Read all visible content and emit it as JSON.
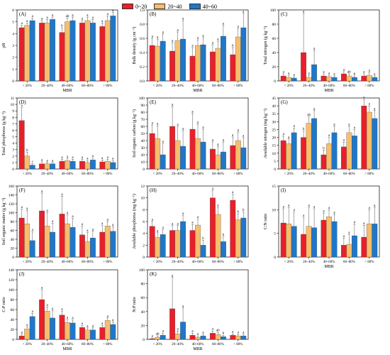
{
  "legend": {
    "items": [
      {
        "label": "0~20",
        "color": "#e8202a"
      },
      {
        "label": "20~40",
        "color": "#f6be6d"
      },
      {
        "label": "40~60",
        "color": "#1f77c9"
      }
    ]
  },
  "chart_data": [
    {
      "type": "bar",
      "panel": "(A)",
      "ylabel": "pH",
      "xlabel": "MBR",
      "categories": [
        "< 20%",
        "20~40%",
        "40~60%",
        "60~80%",
        "> 80%"
      ],
      "ylim": [
        0,
        6
      ],
      "yticks": [
        0,
        1,
        2,
        3,
        4,
        5,
        6
      ],
      "series": [
        {
          "name": "0~20",
          "values": [
            4.5,
            4.9,
            4.1,
            4.9,
            4.6
          ],
          "errors": [
            0.2,
            0.2,
            0.4,
            0.2,
            0.3
          ],
          "letters": [
            "a",
            "a",
            "b",
            "a",
            "a"
          ]
        },
        {
          "name": "20~40",
          "values": [
            4.7,
            4.9,
            5.0,
            5.1,
            5.1
          ],
          "errors": [
            0.2,
            0.3,
            0.3,
            0.3,
            0.4
          ],
          "letters": [
            "a",
            "a",
            "ab",
            "a",
            "a"
          ]
        },
        {
          "name": "40~60",
          "values": [
            5.1,
            5.2,
            5.1,
            4.9,
            5.5
          ],
          "errors": [
            0.2,
            0.2,
            0.3,
            0.3,
            0.3
          ],
          "letters": [
            "a",
            "a",
            "a",
            "a",
            "a"
          ]
        }
      ]
    },
    {
      "type": "bar",
      "panel": "(B)",
      "ylabel": "Bulk density (g cm⁻³)",
      "xlabel": "MBR",
      "categories": [
        "< 20%",
        "20~40%",
        "40~60%",
        "60~80%",
        "> 80%"
      ],
      "ylim": [
        0,
        1.0
      ],
      "yticks": [
        0.0,
        0.2,
        0.4,
        0.6,
        0.8,
        1.0
      ],
      "series": [
        {
          "name": "0~20",
          "values": [
            0.5,
            0.42,
            0.35,
            0.41,
            0.37
          ],
          "errors": [
            0.1,
            0.12,
            0.12,
            0.1,
            0.1
          ],
          "letters": [
            "a",
            "a",
            "a",
            "a",
            "b"
          ]
        },
        {
          "name": "20~40",
          "values": [
            0.49,
            0.57,
            0.5,
            0.46,
            0.62
          ],
          "errors": [
            0.1,
            0.12,
            0.08,
            0.1,
            0.12
          ],
          "letters": [
            "a",
            "a",
            "a",
            "a",
            "a"
          ]
        },
        {
          "name": "40~60",
          "values": [
            0.56,
            0.59,
            0.51,
            0.63,
            0.75
          ],
          "errors": [
            0.1,
            0.26,
            0.1,
            0.15,
            0.2
          ],
          "letters": [
            "a",
            "a",
            "a",
            "a",
            "a"
          ]
        }
      ]
    },
    {
      "type": "bar",
      "panel": "(C)",
      "ylabel": "Total nitrogen (g kg⁻¹)",
      "xlabel": "MBR",
      "categories": [
        "< 20%",
        "20~40%",
        "40~60%",
        "60~80%",
        "> 80%"
      ],
      "ylim": [
        0,
        100
      ],
      "yticks": [
        0,
        20,
        40,
        60,
        80,
        100
      ],
      "series": [
        {
          "name": "0~20",
          "values": [
            7,
            40,
            7,
            10,
            7
          ],
          "errors": [
            3,
            55,
            3,
            3,
            3
          ],
          "letters": [
            "a",
            "a",
            "a",
            "a",
            "a"
          ]
        },
        {
          "name": "20~40",
          "values": [
            5,
            5,
            6,
            7,
            8
          ],
          "errors": [
            3,
            3,
            2,
            3,
            4
          ],
          "letters": [
            "a",
            "a",
            "a",
            "ab",
            "a"
          ]
        },
        {
          "name": "40~60",
          "values": [
            4,
            23,
            5,
            5,
            5
          ],
          "errors": [
            2,
            20,
            2,
            2,
            2
          ],
          "letters": [
            "a",
            "a",
            "a",
            "b",
            "a"
          ]
        }
      ]
    },
    {
      "type": "bar",
      "panel": "(D)",
      "ylabel": "Total phosphorus (g kg⁻¹)",
      "xlabel": "",
      "categories": [
        "< 20%",
        "20~40%",
        "40~60%",
        "60~80%",
        "> 80%"
      ],
      "ylim": [
        0,
        11
      ],
      "yticks": [
        0,
        1,
        2,
        3,
        4,
        5,
        6,
        7,
        8,
        9,
        10,
        11
      ],
      "series": [
        {
          "name": "0~20",
          "values": [
            7.5,
            0.8,
            1.2,
            1.2,
            1.1
          ],
          "errors": [
            2.0,
            0.3,
            0.3,
            0.3,
            0.3
          ],
          "letters": [
            "a",
            "a",
            "a",
            "a",
            "a"
          ]
        },
        {
          "name": "20~40",
          "values": [
            2.0,
            0.8,
            1.3,
            1.0,
            1.2
          ],
          "errors": [
            0.6,
            0.2,
            0.3,
            0.3,
            0.3
          ],
          "letters": [
            "b",
            "a",
            "a",
            "a",
            "a"
          ]
        },
        {
          "name": "40~60",
          "values": [
            0.6,
            0.8,
            1.2,
            1.4,
            1.0
          ],
          "errors": [
            0.2,
            0.2,
            0.3,
            0.3,
            0.3
          ],
          "letters": [
            "c",
            "a",
            "a",
            "a",
            "a"
          ]
        }
      ]
    },
    {
      "type": "bar",
      "panel": "(E)",
      "ylabel": "Soil organic carbon (g kg⁻¹)",
      "xlabel": "",
      "categories": [
        "< 20%",
        "20~40%",
        "40~60%",
        "60~80%",
        "> 80%"
      ],
      "ylim": [
        0,
        100
      ],
      "yticks": [
        0,
        10,
        20,
        30,
        40,
        50,
        60,
        70,
        80,
        90,
        100
      ],
      "series": [
        {
          "name": "0~20",
          "values": [
            50,
            60,
            56,
            28,
            33
          ],
          "errors": [
            12,
            28,
            22,
            10,
            12
          ],
          "letters": [
            "a",
            "a",
            "a",
            "a",
            "a"
          ]
        },
        {
          "name": "20~40",
          "values": [
            43,
            40,
            43,
            20,
            40
          ],
          "errors": [
            18,
            20,
            20,
            12,
            12
          ],
          "letters": [
            "a",
            "a",
            "a",
            "a",
            "a"
          ]
        },
        {
          "name": "40~60",
          "values": [
            20,
            32,
            38,
            24,
            30
          ],
          "errors": [
            16,
            22,
            18,
            14,
            14
          ],
          "letters": [
            "a",
            "a",
            "a",
            "a",
            "a"
          ]
        }
      ]
    },
    {
      "type": "bar",
      "panel": "(G)",
      "ylabel": "Available nitrogen (mg kg⁻¹)",
      "xlabel": "",
      "categories": [
        "< 20%",
        "20~40%",
        "40~60%",
        "60~80%",
        "> 80%"
      ],
      "ylim": [
        0,
        45
      ],
      "yticks": [
        0,
        5,
        10,
        15,
        20,
        25,
        30,
        35,
        40,
        45
      ],
      "series": [
        {
          "name": "0~20",
          "values": [
            18,
            20,
            9,
            14,
            40
          ],
          "errors": [
            3,
            4,
            3,
            3,
            4
          ],
          "letters": [
            "a",
            "b",
            "b",
            "a",
            "a"
          ]
        },
        {
          "name": "20~40",
          "values": [
            16,
            29,
            16,
            23,
            36
          ],
          "errors": [
            3,
            4,
            4,
            4,
            4
          ],
          "letters": [
            "a",
            "ab",
            "a",
            "a",
            "a"
          ]
        },
        {
          "name": "40~60",
          "values": [
            23,
            32,
            23,
            21,
            32
          ],
          "errors": [
            3,
            5,
            4,
            4,
            5
          ],
          "letters": [
            "a",
            "a",
            "a",
            "a",
            "a"
          ]
        }
      ]
    },
    {
      "type": "bar",
      "panel": "(F)",
      "ylabel": "Soil organic matter (g kg⁻¹)",
      "xlabel": "",
      "categories": [
        "< 20%",
        "20~40%",
        "40~60%",
        "60~80%",
        "> 80%"
      ],
      "ylim": [
        0,
        160
      ],
      "yticks": [
        0,
        20,
        40,
        60,
        80,
        100,
        120,
        140,
        160
      ],
      "series": [
        {
          "name": "0~20",
          "values": [
            88,
            104,
            97,
            50,
            56
          ],
          "errors": [
            20,
            40,
            40,
            20,
            15
          ],
          "letters": [
            "a",
            "a",
            "a",
            "a",
            "a"
          ]
        },
        {
          "name": "20~40",
          "values": [
            75,
            70,
            75,
            35,
            70
          ],
          "errors": [
            30,
            30,
            20,
            20,
            10
          ],
          "letters": [
            "a",
            "a",
            "a",
            "a",
            "a"
          ]
        },
        {
          "name": "40~60",
          "values": [
            37,
            56,
            67,
            43,
            58
          ],
          "errors": [
            20,
            20,
            20,
            15,
            10
          ],
          "letters": [
            "a",
            "a",
            "a",
            "a",
            "a"
          ]
        }
      ]
    },
    {
      "type": "bar",
      "panel": "(H)",
      "ylabel": "Available phosphorus (mg kg⁻¹)",
      "xlabel": "",
      "categories": [
        "< 20%",
        "20~40%",
        "40~60%",
        "60~80%",
        "> 80%"
      ],
      "ylim": [
        0,
        12
      ],
      "yticks": [
        0,
        2,
        4,
        6,
        8,
        10,
        12
      ],
      "series": [
        {
          "name": "0~20",
          "values": [
            5.2,
            4.5,
            4.5,
            10.0,
            9.6
          ],
          "errors": [
            0.8,
            0.8,
            1.0,
            1.2,
            1.0
          ],
          "letters": [
            "a",
            "a",
            "a",
            "a",
            "a"
          ]
        },
        {
          "name": "20~40",
          "values": [
            3.3,
            4.5,
            5.4,
            7.2,
            6.3
          ],
          "errors": [
            0.8,
            0.8,
            1.0,
            1.2,
            1.0
          ],
          "letters": [
            "a",
            "a",
            "a",
            "a",
            "b"
          ]
        },
        {
          "name": "40~60",
          "values": [
            3.8,
            6.0,
            2.0,
            2.6,
            6.6
          ],
          "errors": [
            0.8,
            1.0,
            0.8,
            0.8,
            1.0
          ],
          "letters": [
            "a",
            "a",
            "b",
            "b",
            "b"
          ]
        }
      ]
    },
    {
      "type": "bar",
      "panel": "(I)",
      "ylabel": "C:N ratio",
      "xlabel": "MBR",
      "categories": [
        "< 20%",
        "20~40%",
        "40~60%",
        "60~80%",
        "> 80%"
      ],
      "ylim": [
        0,
        15
      ],
      "yticks": [
        0,
        5,
        10,
        15
      ],
      "series": [
        {
          "name": "0~20",
          "values": [
            7.2,
            4.8,
            7.8,
            2.5,
            4.2
          ],
          "errors": [
            3.0,
            3.5,
            1.5,
            1.5,
            2.5
          ],
          "letters": [
            "a",
            "a",
            "a",
            "a",
            "a"
          ]
        },
        {
          "name": "20~40",
          "values": [
            7.0,
            6.5,
            8.5,
            2.7,
            7.0
          ],
          "errors": [
            3.5,
            4.0,
            1.5,
            2.0,
            3.0
          ],
          "letters": [
            "a",
            "a",
            "a",
            "a",
            "a"
          ]
        },
        {
          "name": "40~60",
          "values": [
            6.5,
            6.2,
            7.5,
            4.5,
            7.0
          ],
          "errors": [
            3.0,
            4.0,
            1.5,
            2.5,
            3.5
          ],
          "letters": [
            "a",
            "a",
            "a",
            "a",
            "a"
          ]
        }
      ]
    },
    {
      "type": "bar",
      "panel": "(J)",
      "ylabel": "C:P ratio",
      "xlabel": "MBR",
      "categories": [
        "< 20%",
        "20~40%",
        "40~60%",
        "60~80%",
        "> 80%"
      ],
      "ylim": [
        0,
        140
      ],
      "yticks": [
        0,
        20,
        40,
        60,
        80,
        100,
        120,
        140
      ],
      "series": [
        {
          "name": "0~20",
          "values": [
            7,
            80,
            49,
            24,
            24
          ],
          "errors": [
            3,
            20,
            8,
            4,
            4
          ],
          "letters": [
            "a",
            "a",
            "a",
            "a",
            "a"
          ]
        },
        {
          "name": "20~40",
          "values": [
            21,
            57,
            34,
            19,
            38
          ],
          "errors": [
            4,
            8,
            6,
            4,
            5
          ],
          "letters": [
            "a",
            "a",
            "a",
            "a",
            "a"
          ]
        },
        {
          "name": "40~60",
          "values": [
            46,
            43,
            33,
            19,
            30
          ],
          "errors": [
            6,
            15,
            6,
            4,
            5
          ],
          "letters": [
            "a",
            "a",
            "a",
            "a",
            "a"
          ]
        }
      ]
    },
    {
      "type": "bar",
      "panel": "(K)",
      "ylabel": "N:P ratio",
      "xlabel": "MBR",
      "categories": [
        "< 20%",
        "20~40%",
        "40~60%",
        "60~80%",
        "> 80%"
      ],
      "ylim": [
        0,
        100
      ],
      "yticks": [
        0,
        20,
        40,
        60,
        80,
        100
      ],
      "series": [
        {
          "name": "0~20",
          "values": [
            1,
            44,
            6,
            9,
            6
          ],
          "errors": [
            1,
            45,
            3,
            3,
            2
          ],
          "letters": [
            "a",
            "a",
            "a",
            "a",
            "a"
          ]
        },
        {
          "name": "20~40",
          "values": [
            3,
            8,
            3,
            7,
            5
          ],
          "errors": [
            2,
            4,
            2,
            3,
            2
          ],
          "letters": [
            "ab",
            "a",
            "a",
            "ab",
            "a"
          ]
        },
        {
          "name": "40~60",
          "values": [
            6,
            25,
            5,
            4,
            5
          ],
          "errors": [
            3,
            20,
            2,
            2,
            2
          ],
          "letters": [
            "a",
            "a",
            "a",
            "b",
            "a"
          ]
        }
      ]
    }
  ]
}
